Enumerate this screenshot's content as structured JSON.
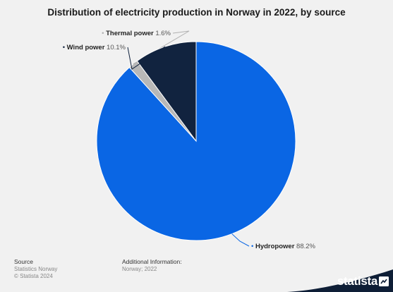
{
  "chart_data": {
    "type": "pie",
    "title": "Distribution of electricity production in Norway in 2022, by source",
    "slices": [
      {
        "label": "Hydropower",
        "value": 88.2,
        "value_label": "88.2%",
        "color": "#0a66e4"
      },
      {
        "label": "Thermal power",
        "value": 1.6,
        "value_label": "1.6%",
        "color": "#b8b8b8"
      },
      {
        "label": "Wind power",
        "value": 10.1,
        "value_label": "10.1%",
        "color": "#11233f"
      }
    ]
  },
  "footer": {
    "source_heading": "Source",
    "source_lines": [
      "Statistics Norway",
      "© Statista 2024"
    ],
    "info_heading": "Additional Information:",
    "info_lines": [
      "Norway; 2022"
    ]
  },
  "brand": {
    "name": "statista",
    "color": "#0e1e36"
  }
}
